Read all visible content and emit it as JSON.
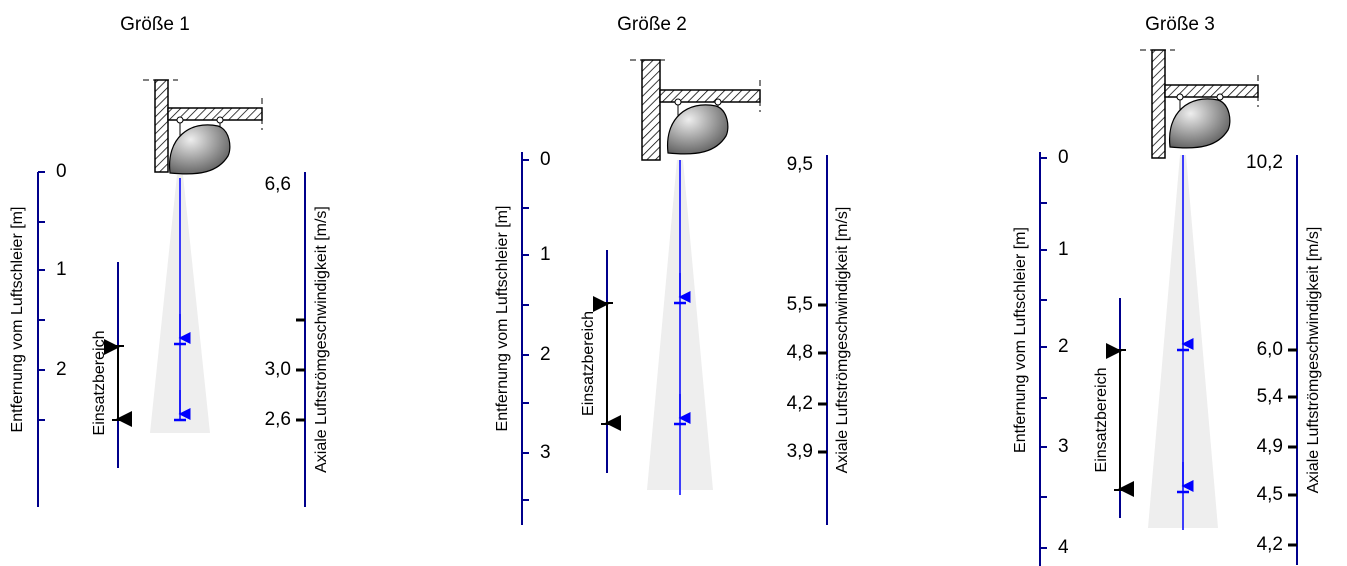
{
  "panels": [
    {
      "title": "Größe 1",
      "left_axis_label": "Entfernung vom Luftschleier [m]",
      "left_ticks": [
        "0",
        "1",
        "2"
      ],
      "range_label": "Einsatzbereich",
      "right_axis_label": "Axiale Luftströmgeschwindigkeit [m/s]",
      "right_ticks": [
        "6,6",
        "3,0",
        "2,6"
      ]
    },
    {
      "title": "Größe 2",
      "left_axis_label": "Entfernung vom Luftschleier [m]",
      "left_ticks": [
        "0",
        "1",
        "2",
        "3"
      ],
      "range_label": "Einsatzbereich",
      "right_axis_label": "Axiale Luftströmgeschwindigkeit [m/s]",
      "right_ticks": [
        "9,5",
        "5,5",
        "4,8",
        "4,2",
        "3,9"
      ]
    },
    {
      "title": "Größe 3",
      "left_axis_label": "Entfernung vom Luftschleier [m]",
      "left_ticks": [
        "0",
        "1",
        "2",
        "3",
        "4"
      ],
      "range_label": "Einsatzbereich",
      "right_axis_label": "Axiale Luftströmgeschwindigkeit [m/s]",
      "right_ticks": [
        "10,2",
        "6,0",
        "5,4",
        "4,9",
        "4,5",
        "4,2"
      ]
    }
  ]
}
